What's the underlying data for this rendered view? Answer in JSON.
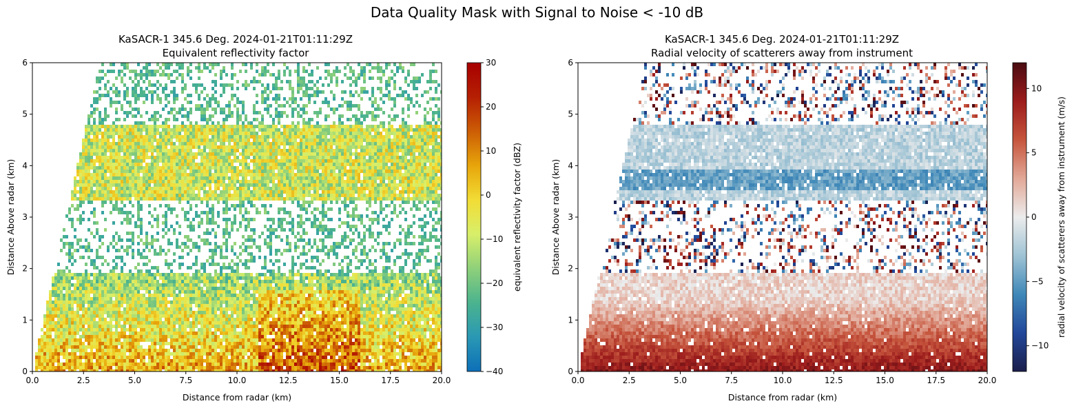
{
  "suptitle": "Data Quality Mask with Signal to Noise < -10 dB",
  "chart_data": [
    {
      "type": "heatmap",
      "title": "KaSACR-1 345.6 Deg. 2024-01-21T01:11:29Z",
      "subtitle": "Equivalent reflectivity factor",
      "xlabel": "Distance from radar (km)",
      "ylabel": "Distance Above radar  (km)",
      "xlim": [
        0,
        20
      ],
      "ylim": [
        0,
        6
      ],
      "xticks": [
        "0.0",
        "2.5",
        "5.0",
        "7.5",
        "10.0",
        "12.5",
        "15.0",
        "17.5",
        "20.0"
      ],
      "yticks": [
        "0",
        "1",
        "2",
        "3",
        "4",
        "5",
        "6"
      ],
      "colorbar": {
        "label": "equivalent reflectivity factor (dBZ)",
        "range": [
          -40,
          30
        ],
        "ticks": [
          "30",
          "20",
          "10",
          "0",
          "−10",
          "−20",
          "−30",
          "−40"
        ],
        "colors": [
          "#0d6fb8",
          "#2a98b4",
          "#4bb38e",
          "#8fd07a",
          "#d8ef6a",
          "#f2dc35",
          "#e7a50b",
          "#cc5d05",
          "#b51f03",
          "#a80000"
        ]
      },
      "field_regions": [
        {
          "description": "upper cloud layer",
          "y_range_km": [
            3.3,
            4.8
          ],
          "value_range_dbz": [
            -25,
            0
          ]
        },
        {
          "description": "lower cloud layer",
          "y_range_km": [
            0,
            1.9
          ],
          "value_range_dbz": [
            -25,
            5
          ]
        }
      ]
    },
    {
      "type": "heatmap",
      "title": "KaSACR-1 345.6 Deg. 2024-01-21T01:11:29Z",
      "subtitle": "Radial velocity of scatterers away from instrument",
      "xlabel": "Distance from radar (km)",
      "ylabel": "Distance Above radar  (km)",
      "xlim": [
        0,
        20
      ],
      "ylim": [
        0,
        6
      ],
      "xticks": [
        "0.0",
        "2.5",
        "5.0",
        "7.5",
        "10.0",
        "12.5",
        "15.0",
        "17.5",
        "20.0"
      ],
      "yticks": [
        "0",
        "1",
        "2",
        "3",
        "4",
        "5",
        "6"
      ],
      "colorbar": {
        "label": "radial velocity of scatterers away from instrument (m/s)",
        "range": [
          -12,
          12
        ],
        "ticks": [
          "10",
          "5",
          "0",
          "−5",
          "−10"
        ],
        "colors": [
          "#1a1e4a",
          "#22479a",
          "#3f88b8",
          "#9fc3d4",
          "#ececec",
          "#e2a897",
          "#c6553d",
          "#9c1c1c",
          "#4a0c12"
        ]
      }
    }
  ]
}
